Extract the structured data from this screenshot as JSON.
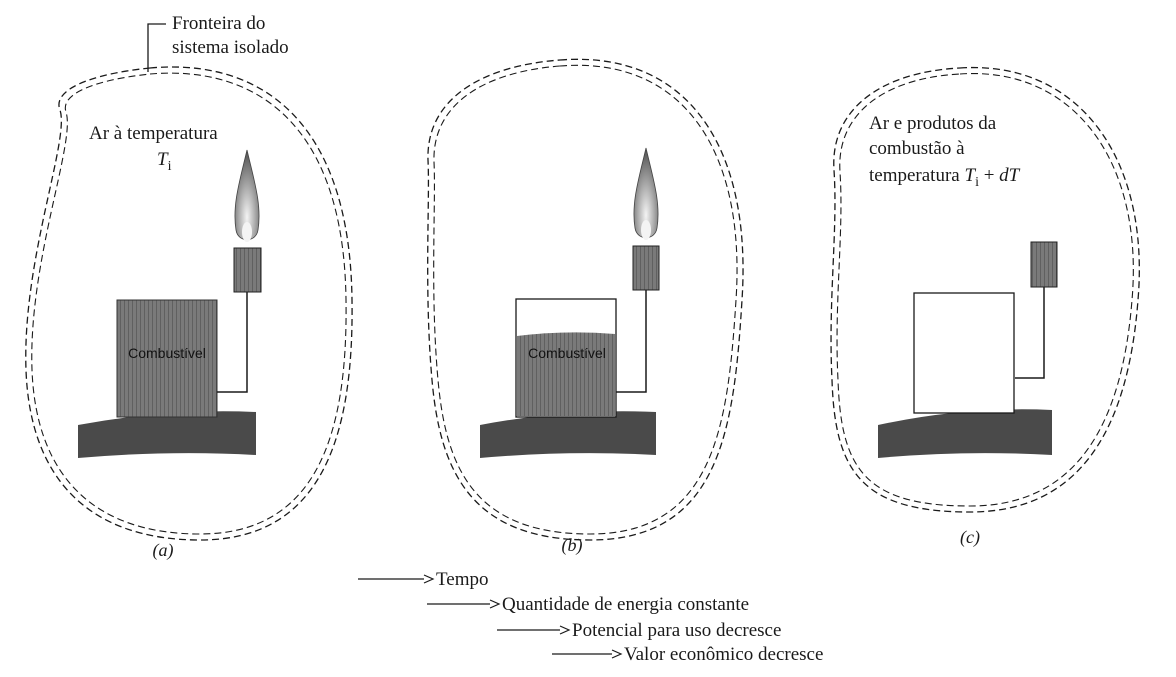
{
  "boundary_label": {
    "line1": "Fronteira do",
    "line2": "sistema isolado"
  },
  "panel_a": {
    "air_line1": "Ar à temperatura",
    "air_T": "T",
    "air_sub": "i",
    "fuel_label": "Combustível",
    "caption": "(a)"
  },
  "panel_b": {
    "fuel_label": "Combustível",
    "caption": "(b)"
  },
  "panel_c": {
    "line1": "Ar e produtos da",
    "line2": "combustão à",
    "line3_prefix": "temperatura ",
    "T": "T",
    "sub": "i",
    "tail": " + ",
    "dT": "dT",
    "caption": "(c)"
  },
  "arrows": [
    "Tempo",
    "Quantidade de energia constante",
    "Potencial para uso decresce",
    "Valor econômico decresce"
  ],
  "colors": {
    "ink": "#1a1a1a",
    "fuel_fill": "#6d6d6d",
    "ground": "#4a4a4a",
    "flame": "#8a8a8a"
  }
}
